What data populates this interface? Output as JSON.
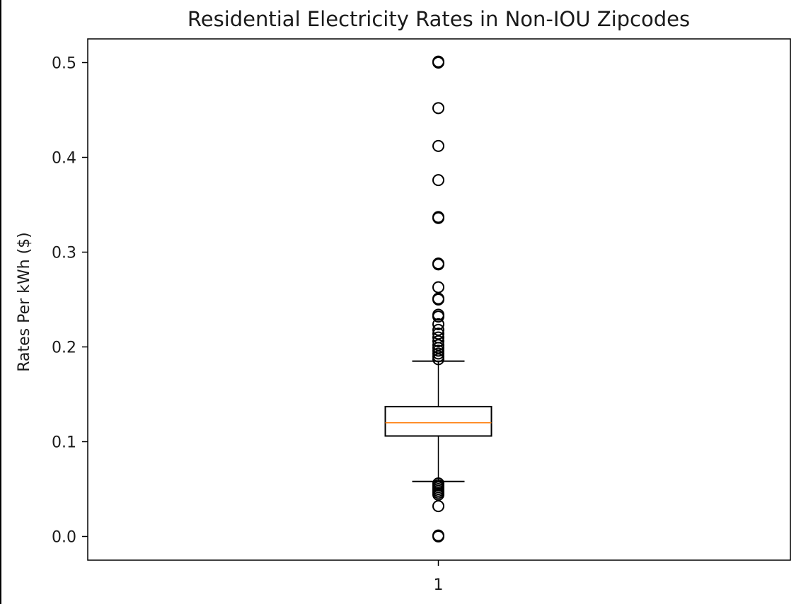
{
  "chart_data": {
    "type": "boxplot",
    "title": "Residential Electricity Rates in Non-IOU Zipcodes",
    "xlabel": "",
    "ylabel": "Rates Per kWh ($)",
    "ylim": [
      -0.025,
      0.525
    ],
    "y_ticks": [
      0.0,
      0.1,
      0.2,
      0.3,
      0.4,
      0.5
    ],
    "y_tick_labels": [
      "0.0",
      "0.1",
      "0.2",
      "0.3",
      "0.4",
      "0.5"
    ],
    "x_tick_labels": [
      "1"
    ],
    "grid": false,
    "series": [
      {
        "name": "1",
        "q1": 0.106,
        "median": 0.12,
        "q3": 0.137,
        "whisker_low": 0.058,
        "whisker_high": 0.185,
        "outliers": [
          0.5,
          0.501,
          0.452,
          0.412,
          0.376,
          0.337,
          0.336,
          0.288,
          0.287,
          0.263,
          0.251,
          0.25,
          0.234,
          0.232,
          0.224,
          0.218,
          0.214,
          0.21,
          0.206,
          0.202,
          0.199,
          0.196,
          0.193,
          0.19,
          0.187,
          0.056,
          0.054,
          0.052,
          0.05,
          0.048,
          0.046,
          0.044,
          0.032,
          0.0,
          0.001
        ]
      }
    ],
    "colors": {
      "median": "#ff7f0e",
      "box": "#000000"
    }
  }
}
